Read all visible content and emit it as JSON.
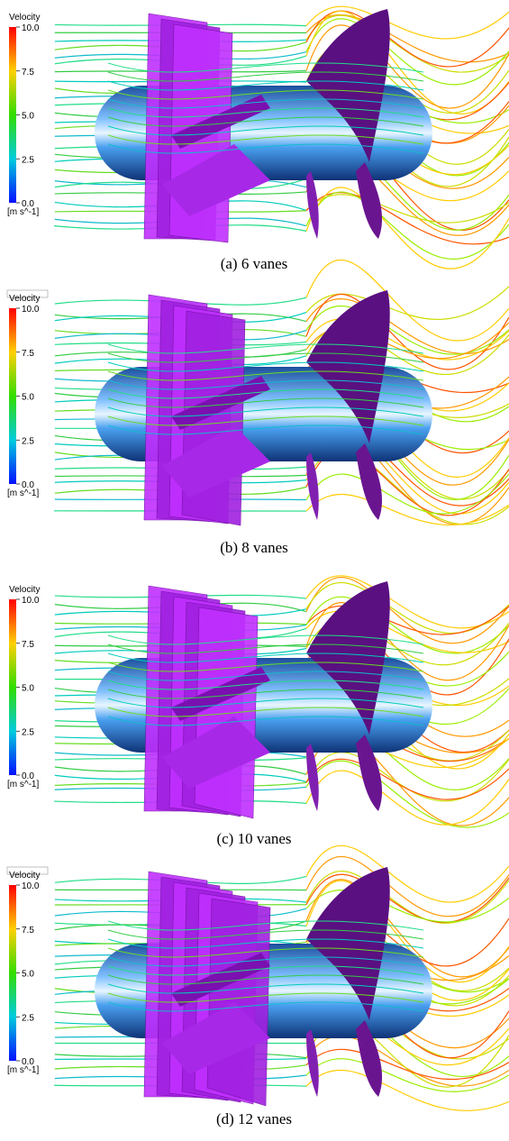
{
  "panels": [
    {
      "legend": {
        "title": "Velocity",
        "ticks": [
          "10.0",
          "7.5",
          "5.0",
          "2.5",
          "0.0"
        ],
        "unit": "[m s^-1]"
      },
      "caption": "(a) 6 vanes"
    },
    {
      "legend": {
        "title": "Velocity",
        "ticks": [
          "10.0",
          "7.5",
          "5.0",
          "2.5",
          "0.0"
        ],
        "unit": "[m s^-1]"
      },
      "caption": "(b) 8 vanes"
    },
    {
      "legend": {
        "title": "Velocity",
        "ticks": [
          "10.0",
          "7.5",
          "5.0",
          "2.5",
          "0.0"
        ],
        "unit": "[m s^-1]"
      },
      "caption": "(c) 10 vanes"
    },
    {
      "legend": {
        "title": "Velocity",
        "ticks": [
          "10.0",
          "7.5",
          "5.0",
          "2.5",
          "0.0"
        ],
        "unit": "[m s^-1]"
      },
      "caption": "(d) 12 vanes"
    }
  ]
}
